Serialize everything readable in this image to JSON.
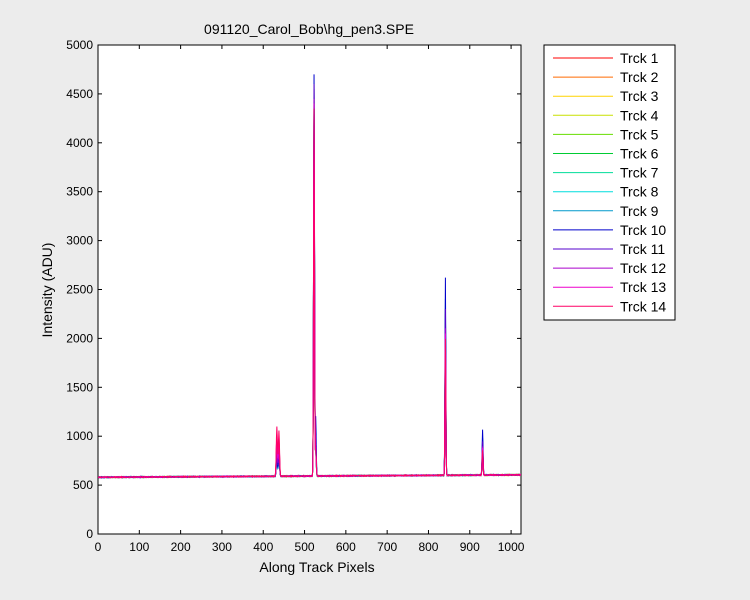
{
  "window": {
    "background": "#ececec"
  },
  "chart_data": {
    "type": "line",
    "title": "091120_Carol_Bob\\hg_pen3.SPE",
    "xlabel": "Along Track Pixels",
    "ylabel": "Intensity (ADU)",
    "xlim": [
      0,
      1024
    ],
    "ylim": [
      0,
      5000
    ],
    "xticks": [
      0,
      100,
      200,
      300,
      400,
      500,
      600,
      700,
      800,
      900,
      1000
    ],
    "yticks": [
      0,
      500,
      1000,
      1500,
      2000,
      2500,
      3000,
      3500,
      4000,
      4500,
      5000
    ],
    "grid": false,
    "legend_position": "outside-top-right",
    "baseline": {
      "start": 580,
      "end": 605
    },
    "peaks": [
      {
        "x": 433,
        "width": 1.4,
        "heights": [
          1000,
          960,
          900,
          880,
          860,
          820,
          800,
          780,
          760,
          800,
          840,
          900,
          1000,
          1100
        ]
      },
      {
        "x": 438,
        "width": 1.4,
        "heights": [
          950,
          930,
          900,
          880,
          860,
          840,
          820,
          800,
          780,
          820,
          860,
          900,
          980,
          1060
        ]
      },
      {
        "x": 523,
        "width": 1.1,
        "heights": [
          4550,
          4300,
          4200,
          4250,
          4300,
          4350,
          4400,
          4450,
          4600,
          4700,
          4600,
          4450,
          4400,
          4350
        ]
      },
      {
        "x": 527,
        "width": 1.2,
        "heights": [
          1000,
          950,
          900,
          880,
          860,
          850,
          840,
          830,
          900,
          1200,
          1000,
          900,
          870,
          850
        ]
      },
      {
        "x": 841,
        "width": 1.0,
        "heights": [
          2300,
          2100,
          2000,
          2050,
          2100,
          2150,
          2200,
          2250,
          2400,
          2620,
          2300,
          2100,
          2050,
          2000
        ]
      },
      {
        "x": 931,
        "width": 1.1,
        "heights": [
          900,
          880,
          860,
          850,
          860,
          870,
          880,
          900,
          980,
          1070,
          950,
          900,
          880,
          860
        ]
      }
    ],
    "series": [
      {
        "name": "Trck 1",
        "color": "#ff0000"
      },
      {
        "name": "Trck 2",
        "color": "#ff6a00"
      },
      {
        "name": "Trck 3",
        "color": "#ffd400"
      },
      {
        "name": "Trck 4",
        "color": "#c8e000"
      },
      {
        "name": "Trck 5",
        "color": "#66dd00"
      },
      {
        "name": "Trck 6",
        "color": "#00cc33"
      },
      {
        "name": "Trck 7",
        "color": "#00dd99"
      },
      {
        "name": "Trck 8",
        "color": "#00dddd"
      },
      {
        "name": "Trck 9",
        "color": "#0099cc"
      },
      {
        "name": "Trck 10",
        "color": "#0000cc"
      },
      {
        "name": "Trck 11",
        "color": "#5500cc"
      },
      {
        "name": "Trck 12",
        "color": "#aa00cc"
      },
      {
        "name": "Trck 13",
        "color": "#ee00cc"
      },
      {
        "name": "Trck 14",
        "color": "#ff0066"
      }
    ]
  }
}
